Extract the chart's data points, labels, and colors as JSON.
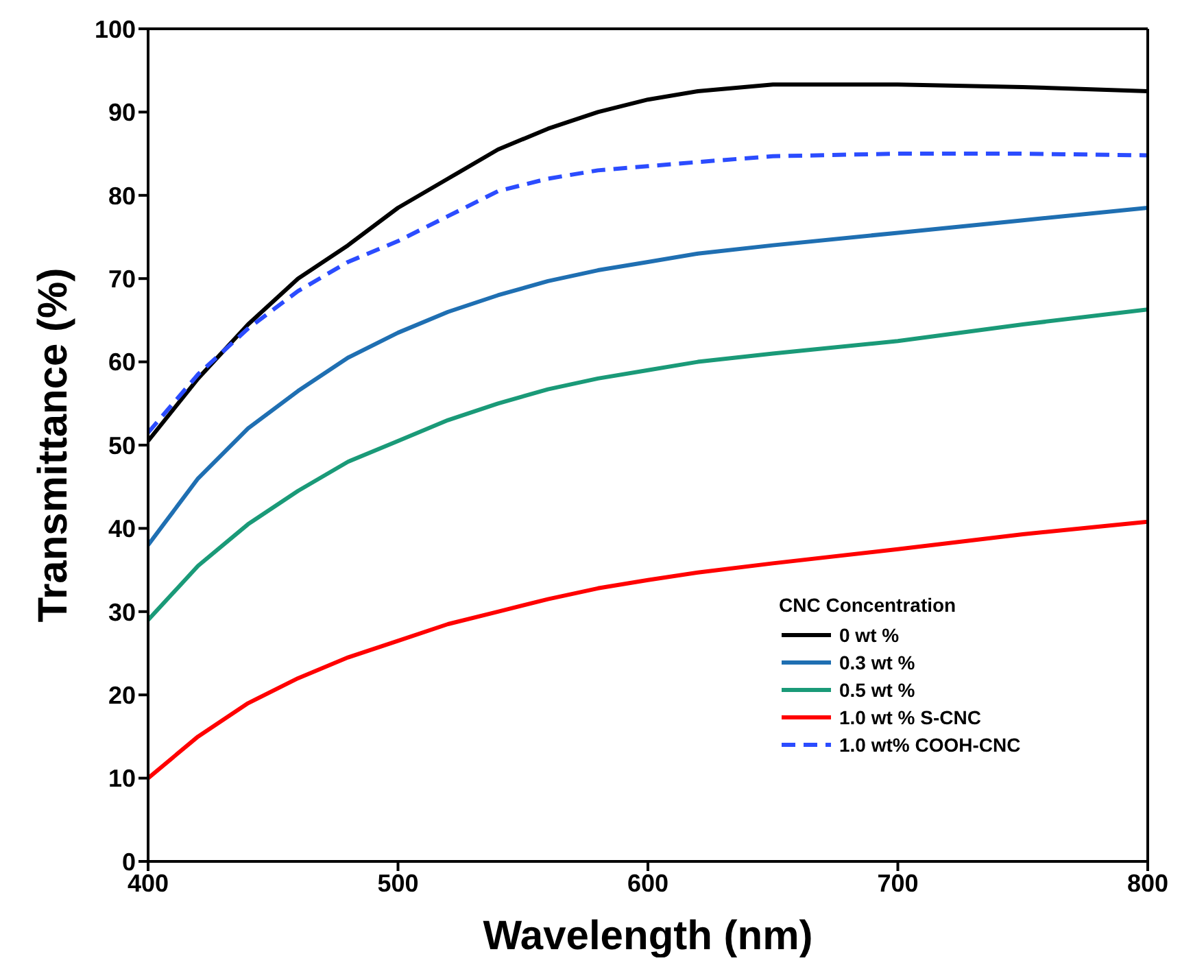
{
  "chart_data": {
    "type": "line",
    "xlabel": "Wavelength (nm)",
    "ylabel": "Transmittance (%)",
    "legend_title": "CNC Concentration",
    "x": [
      400,
      420,
      440,
      460,
      480,
      500,
      520,
      540,
      560,
      580,
      600,
      620,
      650,
      700,
      750,
      800
    ],
    "series": [
      {
        "name": "0 wt %",
        "color": "#000000",
        "values": [
          50.5,
          58,
          64.5,
          70,
          74,
          78.5,
          82,
          85.5,
          88,
          90,
          91.5,
          92.5,
          93.3,
          93.3,
          93,
          92.5
        ]
      },
      {
        "name": "0.3 wt %",
        "color": "#1f6fb2",
        "values": [
          38,
          46,
          52,
          56.5,
          60.5,
          63.5,
          66,
          68,
          69.7,
          71,
          72,
          73,
          74,
          75.5,
          77,
          78.5
        ]
      },
      {
        "name": "0.5 wt %",
        "color": "#1a9a78",
        "values": [
          29,
          35.5,
          40.5,
          44.5,
          48,
          50.5,
          53,
          55,
          56.7,
          58,
          59,
          60,
          61,
          62.5,
          64.5,
          66.3
        ]
      },
      {
        "name": "1.0 wt % S-CNC",
        "color": "#ff0000",
        "values": [
          10,
          15,
          19,
          22,
          24.5,
          26.5,
          28.5,
          30,
          31.5,
          32.8,
          33.8,
          34.7,
          35.8,
          37.5,
          39.3,
          40.8
        ]
      },
      {
        "name": "1.0 wt% COOH-CNC",
        "color": "#2b4cff",
        "line_style": "dashed",
        "values": [
          51.5,
          58.5,
          64,
          68.5,
          72,
          74.5,
          77.5,
          80.5,
          82,
          83,
          83.5,
          84,
          84.7,
          85,
          85,
          84.8
        ]
      }
    ],
    "xlim": [
      400,
      800
    ],
    "xticks": [
      400,
      500,
      600,
      700,
      800
    ],
    "ylim": [
      0,
      100
    ],
    "yticks": [
      0,
      10,
      20,
      30,
      40,
      50,
      60,
      70,
      80,
      90,
      100
    ],
    "grid": false,
    "legend": "bottom right",
    "marker": "none",
    "line_style": "solid"
  }
}
